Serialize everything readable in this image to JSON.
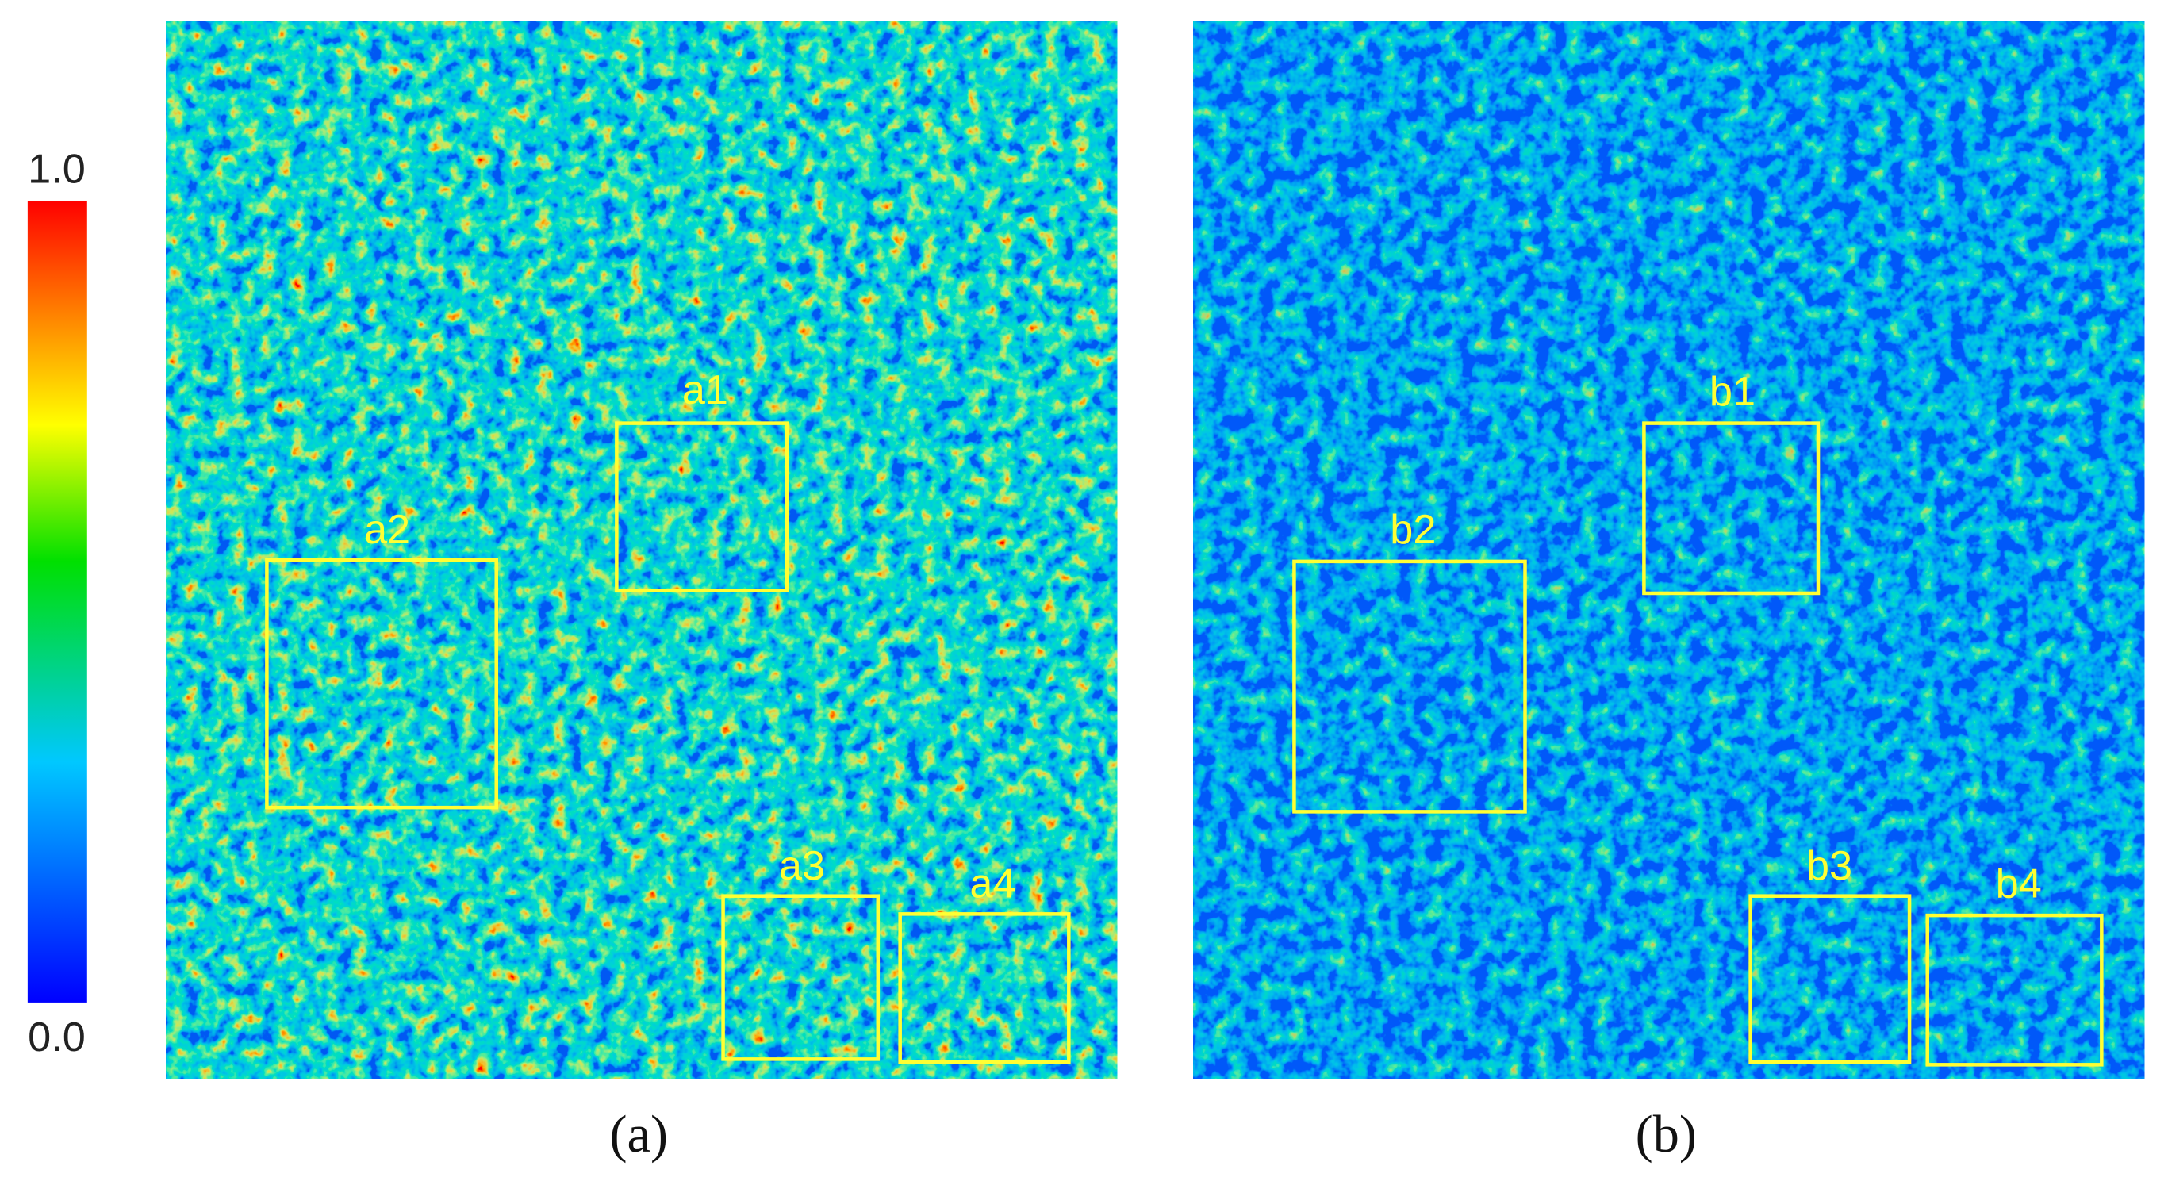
{
  "colorbar": {
    "max_label": "1.0",
    "min_label": "0.0"
  },
  "panels": [
    {
      "label": "(a)",
      "boxes": [
        "a1",
        "a2",
        "a3",
        "a4"
      ]
    },
    {
      "label": "(b)",
      "boxes": [
        "b1",
        "b2",
        "b3",
        "b4"
      ]
    }
  ]
}
